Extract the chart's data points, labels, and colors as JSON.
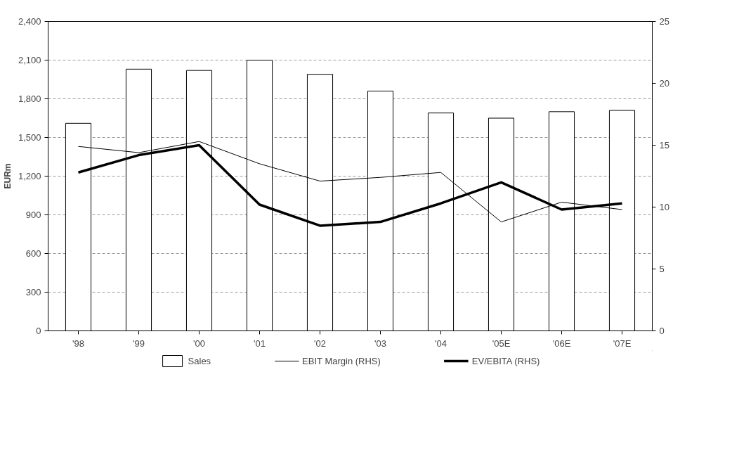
{
  "chart_data": {
    "type": "bar",
    "ylabel": "EURm",
    "categories": [
      "'98",
      "'99",
      "'00",
      "'01",
      "'02",
      "'03",
      "'04",
      "'05E",
      "'06E",
      "'07E"
    ],
    "series": [
      {
        "name": "Sales",
        "color": "#ffffff",
        "values": [
          1610,
          2030,
          2020,
          2100,
          1990,
          1860,
          1690,
          1650,
          1700,
          1710
        ]
      },
      {
        "name": "EBIT Margin (RHS)",
        "type": "line",
        "axis": "y2",
        "color": "#000000",
        "values": [
          14.9,
          14.4,
          15.3,
          13.5,
          12.1,
          12.4,
          12.8,
          8.8,
          10.4,
          9.8
        ]
      },
      {
        "name": "EV/EBITA (RHS)",
        "type": "line",
        "axis": "y2",
        "color": "#000000",
        "values": [
          12.8,
          14.2,
          15.0,
          10.2,
          8.5,
          8.8,
          10.3,
          12.0,
          9.8,
          10.3
        ]
      }
    ],
    "ylim": [
      0,
      2400
    ],
    "yticks": [
      0,
      300,
      600,
      900,
      {
        "value": 1200,
        "label": "1,200"
      },
      {
        "value": 1500,
        "label": "1,500"
      },
      {
        "value": 1800,
        "label": "1,800"
      },
      {
        "value": 2100,
        "label": "2,100"
      },
      {
        "value": 2400,
        "label": "2,400"
      }
    ],
    "y2lim": [
      0,
      25
    ],
    "y2ticks": [
      0,
      5,
      10,
      15,
      20,
      25
    ],
    "grid": "y",
    "legend": "bottom",
    "marker": "none",
    "line_style": "solid"
  }
}
